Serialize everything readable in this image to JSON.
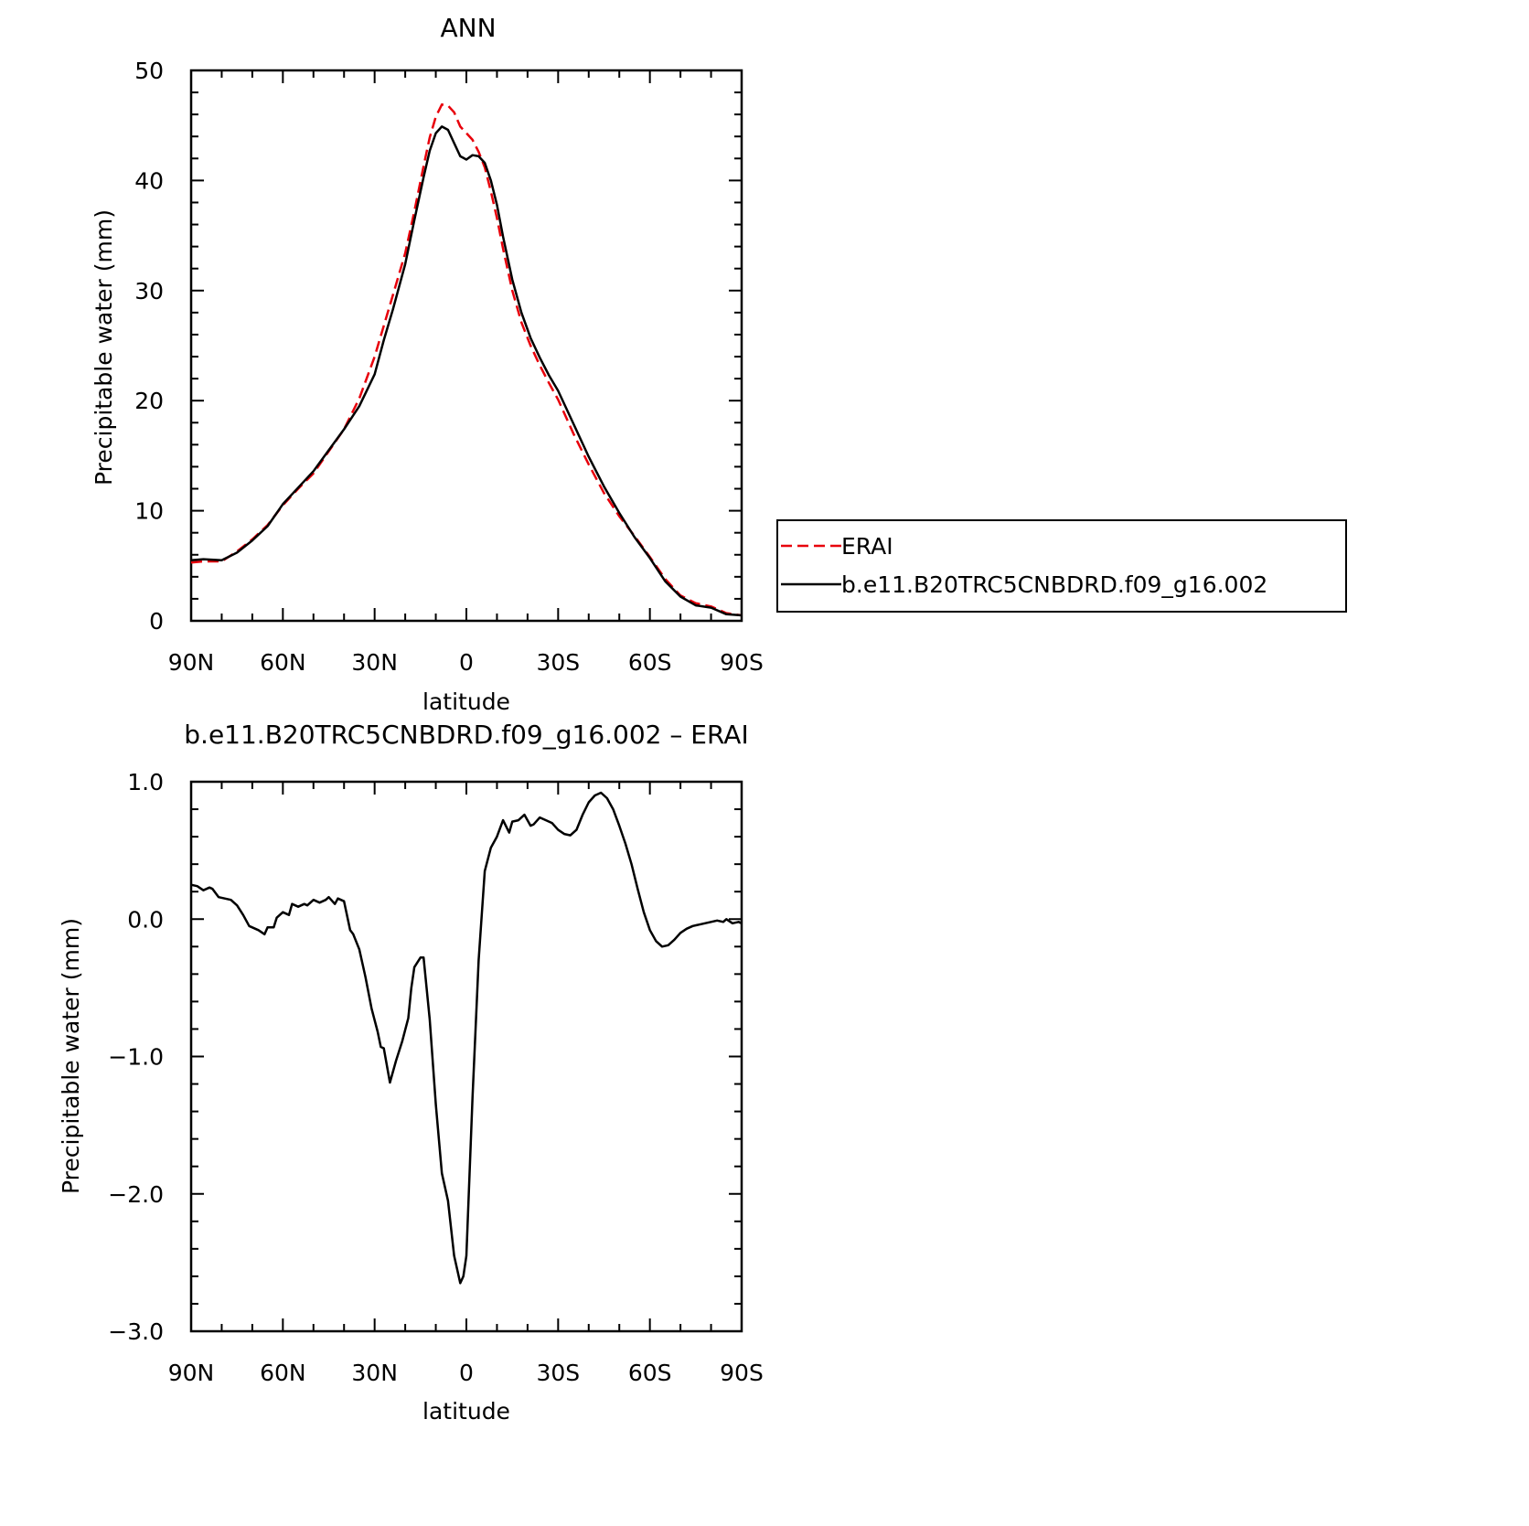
{
  "chart_data": [
    {
      "type": "line",
      "title": "ANN",
      "xlabel": "latitude",
      "ylabel": "Precipitable water (mm)",
      "xlim": [
        90,
        -90
      ],
      "ylim": [
        0,
        50
      ],
      "x_ticks": [
        90,
        60,
        30,
        0,
        -30,
        -60,
        -90
      ],
      "x_tick_labels": [
        "90N",
        "60N",
        "30N",
        "0",
        "30S",
        "60S",
        "90S"
      ],
      "y_ticks": [
        0,
        10,
        20,
        30,
        40,
        50
      ],
      "y_tick_labels": [
        "0",
        "10",
        "20",
        "30",
        "40",
        "50"
      ],
      "grid": false,
      "legend": {
        "position": "right",
        "entries": [
          {
            "label": "ERAI",
            "color": "#e8000b",
            "dash": "dashed"
          },
          {
            "label": "b.e11.B20TRC5CNBDRD.f09_g16.002",
            "color": "#000000",
            "dash": "solid"
          }
        ]
      },
      "series": [
        {
          "name": "ERAI",
          "color": "#e8000b",
          "dash": "dashed",
          "x": [
            90,
            86,
            80,
            75,
            70,
            65,
            60,
            55,
            50,
            45,
            40,
            35,
            30,
            27,
            24,
            20,
            17,
            14,
            12,
            10,
            8,
            6,
            4,
            2,
            0,
            -2,
            -4,
            -6,
            -8,
            -10,
            -12,
            -15,
            -18,
            -21,
            -24,
            -27,
            -30,
            -35,
            -40,
            -45,
            -50,
            -55,
            -60,
            -65,
            -70,
            -75,
            -80,
            -85,
            -90
          ],
          "y": [
            5.3,
            5.4,
            5.4,
            6.3,
            7.4,
            8.7,
            10.5,
            12,
            13.4,
            15.4,
            17.4,
            20.2,
            24,
            26.8,
            29.6,
            33.4,
            37.2,
            41.3,
            43.9,
            45.8,
            46.9,
            46.8,
            46.2,
            44.9,
            44.3,
            43.7,
            42.6,
            41.2,
            39,
            36.6,
            33.8,
            30,
            27.1,
            25,
            23.2,
            21.6,
            20.1,
            17,
            14.2,
            11.6,
            9.5,
            7.7,
            5.8,
            3.8,
            2.3,
            1.6,
            1.3,
            0.7,
            0.5
          ]
        },
        {
          "name": "b.e11.B20TRC5CNBDRD.f09_g16.002",
          "color": "#000000",
          "dash": "solid",
          "x": [
            90,
            86,
            80,
            75,
            70,
            65,
            60,
            55,
            50,
            45,
            40,
            35,
            30,
            27,
            24,
            20,
            17,
            14,
            12,
            10,
            8,
            6,
            4,
            2,
            0,
            -2,
            -4,
            -6,
            -8,
            -10,
            -12,
            -15,
            -18,
            -21,
            -24,
            -27,
            -30,
            -35,
            -40,
            -45,
            -50,
            -55,
            -60,
            -65,
            -70,
            -75,
            -80,
            -85,
            -90
          ],
          "y": [
            5.5,
            5.6,
            5.5,
            6.2,
            7.3,
            8.6,
            10.6,
            12.1,
            13.6,
            15.5,
            17.4,
            19.5,
            22.4,
            25.5,
            28.3,
            32.4,
            36.4,
            40.3,
            42.7,
            44.3,
            44.9,
            44.6,
            43.4,
            42.2,
            41.9,
            42.3,
            42.2,
            41.6,
            40,
            37.8,
            34.9,
            31,
            28,
            25.7,
            23.9,
            22.3,
            20.9,
            17.9,
            14.9,
            12.2,
            9.8,
            7.6,
            5.7,
            3.6,
            2.2,
            1.4,
            1.2,
            0.6,
            0.5
          ]
        }
      ]
    },
    {
      "type": "line",
      "title": "b.e11.B20TRC5CNBDRD.f09_g16.002 – ERAI",
      "xlabel": "latitude",
      "ylabel": "Precipitable water (mm)",
      "xlim": [
        90,
        -90
      ],
      "ylim": [
        -3,
        1
      ],
      "x_ticks": [
        90,
        60,
        30,
        0,
        -30,
        -60,
        -90
      ],
      "x_tick_labels": [
        "90N",
        "60N",
        "30N",
        "0",
        "30S",
        "60S",
        "90S"
      ],
      "y_ticks": [
        -3,
        -2,
        -1,
        0,
        1
      ],
      "y_tick_labels": [
        "−3.0",
        "−2.0",
        "−1.0",
        "0.0",
        "1.0"
      ],
      "grid": false,
      "series": [
        {
          "color": "#000000",
          "dash": "solid",
          "x": [
            90,
            88,
            86,
            84,
            83,
            81,
            79,
            77,
            75,
            73,
            71,
            69,
            68,
            66,
            65,
            63,
            62,
            60,
            58,
            57,
            55,
            53,
            52,
            50,
            48,
            46,
            45,
            43,
            42,
            40,
            38,
            37,
            35,
            33,
            31,
            29,
            28,
            27,
            25,
            23,
            21,
            19,
            18,
            17,
            15,
            14,
            12,
            10,
            8,
            6,
            4,
            2,
            1,
            0,
            -2,
            -4,
            -6,
            -8,
            -10,
            -12,
            -14,
            -15,
            -17,
            -19,
            -21,
            -22,
            -24,
            -26,
            -28,
            -30,
            -32,
            -34,
            -36,
            -38,
            -40,
            -42,
            -44,
            -46,
            -48,
            -50,
            -52,
            -54,
            -56,
            -58,
            -60,
            -62,
            -64,
            -66,
            -68,
            -70,
            -72,
            -74,
            -76,
            -78,
            -80,
            -82,
            -84,
            -85,
            -87,
            -89,
            -90
          ],
          "y": [
            0.25,
            0.24,
            0.21,
            0.23,
            0.22,
            0.16,
            0.15,
            0.14,
            0.1,
            0.03,
            -0.05,
            -0.07,
            -0.08,
            -0.11,
            -0.06,
            -0.06,
            0.01,
            0.05,
            0.03,
            0.11,
            0.09,
            0.11,
            0.1,
            0.14,
            0.12,
            0.14,
            0.16,
            0.11,
            0.15,
            0.13,
            -0.08,
            -0.11,
            -0.22,
            -0.42,
            -0.65,
            -0.82,
            -0.93,
            -0.94,
            -1.19,
            -1.03,
            -0.89,
            -0.72,
            -0.5,
            -0.35,
            -0.28,
            -0.28,
            -0.73,
            -1.35,
            -1.85,
            -2.05,
            -2.45,
            -2.65,
            -2.6,
            -2.45,
            -1.3,
            -0.3,
            0.35,
            0.52,
            0.6,
            0.72,
            0.63,
            0.71,
            0.72,
            0.76,
            0.68,
            0.69,
            0.74,
            0.72,
            0.7,
            0.65,
            0.62,
            0.61,
            0.65,
            0.76,
            0.85,
            0.9,
            0.92,
            0.88,
            0.8,
            0.68,
            0.55,
            0.4,
            0.22,
            0.05,
            -0.08,
            -0.16,
            -0.2,
            -0.19,
            -0.15,
            -0.1,
            -0.07,
            -0.05,
            -0.04,
            -0.03,
            -0.02,
            -0.01,
            -0.02,
            0.0,
            -0.03,
            -0.02,
            -0.03
          ]
        }
      ]
    }
  ]
}
